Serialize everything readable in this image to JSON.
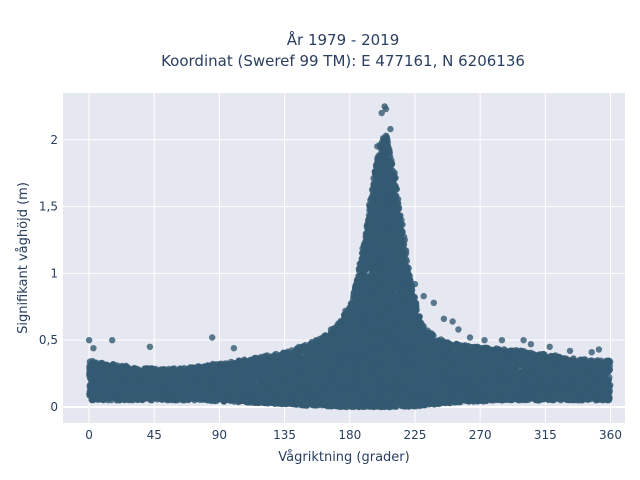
{
  "chart_data": {
    "type": "scatter",
    "title_line1": "År 1979 - 2019",
    "title_line2": "Koordinat (Sweref 99 TM): E 477161, N 6206136",
    "xlabel": "Vågriktning (grader)",
    "ylabel": "Signifikant våghöjd (m)",
    "xlim": [
      -18,
      370
    ],
    "ylim": [
      -0.12,
      2.35
    ],
    "x_ticks": [
      0,
      45,
      90,
      135,
      180,
      225,
      270,
      315,
      360
    ],
    "x_tick_labels": [
      "0",
      "45",
      "90",
      "135",
      "180",
      "225",
      "270",
      "315",
      "360"
    ],
    "y_ticks": [
      0,
      0.5,
      1,
      1.5,
      2
    ],
    "y_tick_labels": [
      "0",
      "0,5",
      "1",
      "1,5",
      "2"
    ],
    "grid": true,
    "legend": "none",
    "colors": {
      "plot_background": "#e5e8f0",
      "marker": "#345a73",
      "text": "#2a3f5f",
      "grid": "#ffffff"
    },
    "envelope": {
      "note_free_points": [],
      "direction": [
        0,
        10,
        20,
        30,
        40,
        50,
        60,
        70,
        80,
        90,
        100,
        110,
        120,
        130,
        140,
        150,
        160,
        170,
        180,
        185,
        190,
        195,
        200,
        205,
        210,
        215,
        220,
        225,
        230,
        240,
        250,
        260,
        270,
        280,
        290,
        300,
        310,
        320,
        330,
        340,
        350,
        360
      ],
      "max_height": [
        0.35,
        0.33,
        0.32,
        0.3,
        0.29,
        0.29,
        0.29,
        0.3,
        0.31,
        0.33,
        0.34,
        0.36,
        0.38,
        0.4,
        0.43,
        0.47,
        0.52,
        0.6,
        0.75,
        0.95,
        1.25,
        1.6,
        1.95,
        2.05,
        1.8,
        1.45,
        1.05,
        0.8,
        0.62,
        0.52,
        0.48,
        0.46,
        0.45,
        0.44,
        0.43,
        0.42,
        0.4,
        0.39,
        0.37,
        0.36,
        0.35,
        0.35
      ],
      "min_height": [
        0.05,
        0.05,
        0.05,
        0.05,
        0.05,
        0.05,
        0.05,
        0.05,
        0.05,
        0.04,
        0.04,
        0.03,
        0.03,
        0.02,
        0.02,
        0.01,
        0.01,
        0.0,
        0.0,
        0.0,
        0.0,
        0.0,
        0.0,
        0.0,
        0.0,
        0.0,
        0.0,
        0.0,
        0.01,
        0.02,
        0.03,
        0.04,
        0.04,
        0.05,
        0.05,
        0.05,
        0.05,
        0.05,
        0.05,
        0.05,
        0.05,
        0.05
      ]
    },
    "outliers": [
      {
        "x": 0,
        "y": 0.5
      },
      {
        "x": 3,
        "y": 0.44
      },
      {
        "x": 16,
        "y": 0.5
      },
      {
        "x": 42,
        "y": 0.45
      },
      {
        "x": 85,
        "y": 0.52
      },
      {
        "x": 100,
        "y": 0.44
      },
      {
        "x": 157,
        "y": 0.5
      },
      {
        "x": 167,
        "y": 0.58
      },
      {
        "x": 173,
        "y": 0.62
      },
      {
        "x": 177,
        "y": 0.72
      },
      {
        "x": 183,
        "y": 0.86
      },
      {
        "x": 186,
        "y": 0.98
      },
      {
        "x": 195,
        "y": 1.5
      },
      {
        "x": 199,
        "y": 1.95
      },
      {
        "x": 202,
        "y": 2.2
      },
      {
        "x": 204,
        "y": 2.25
      },
      {
        "x": 205,
        "y": 2.23
      },
      {
        "x": 208,
        "y": 2.08
      },
      {
        "x": 213,
        "y": 1.52
      },
      {
        "x": 218,
        "y": 1.25
      },
      {
        "x": 225,
        "y": 0.92
      },
      {
        "x": 231,
        "y": 0.83
      },
      {
        "x": 238,
        "y": 0.78
      },
      {
        "x": 245,
        "y": 0.66
      },
      {
        "x": 251,
        "y": 0.64
      },
      {
        "x": 255,
        "y": 0.58
      },
      {
        "x": 263,
        "y": 0.52
      },
      {
        "x": 273,
        "y": 0.5
      },
      {
        "x": 285,
        "y": 0.5
      },
      {
        "x": 300,
        "y": 0.5
      },
      {
        "x": 305,
        "y": 0.47
      },
      {
        "x": 318,
        "y": 0.45
      },
      {
        "x": 332,
        "y": 0.42
      },
      {
        "x": 347,
        "y": 0.41
      },
      {
        "x": 352,
        "y": 0.43
      }
    ]
  }
}
